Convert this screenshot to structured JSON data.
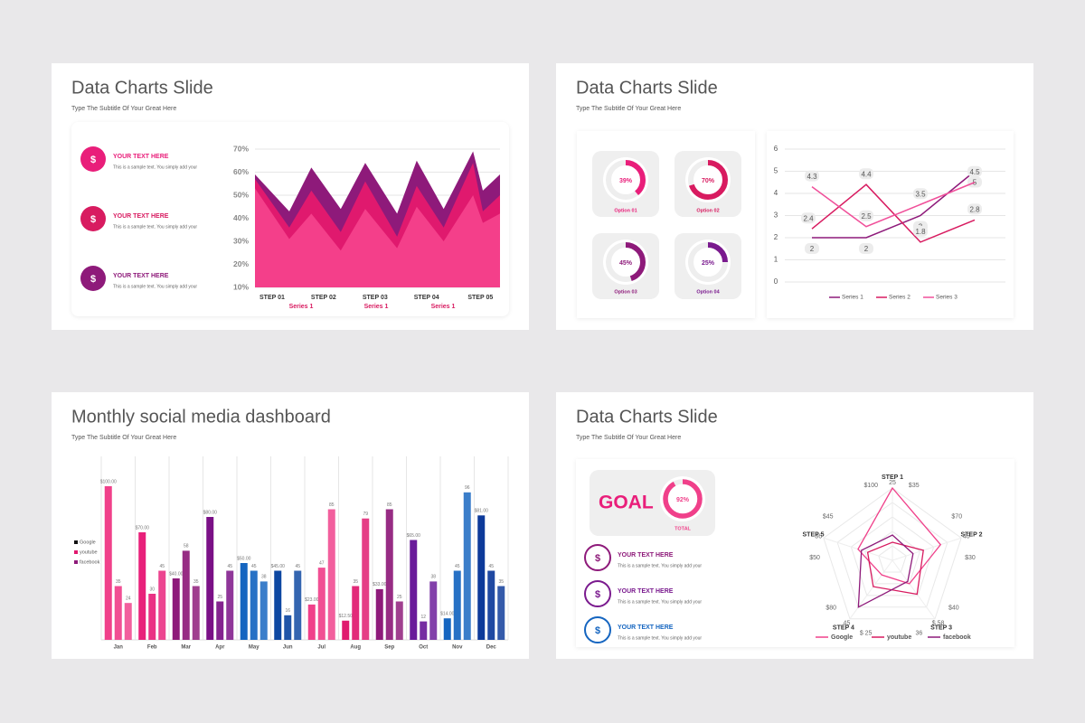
{
  "slides": [
    {
      "title": "Data Charts Slide",
      "subtitle": "Type The Subtitle Of Your Great Here",
      "items": [
        {
          "heading": "YOUR TEXT HERE",
          "text": "This is a sample text. You simply add your"
        },
        {
          "heading": "YOUR TEXT HERE",
          "text": "This is a sample text. You simply add your"
        },
        {
          "heading": "YOUR TEXT HERE",
          "text": "This is a sample text. You simply add your"
        }
      ]
    },
    {
      "title": "Data Charts Slide",
      "subtitle": "Type The Subtitle Of Your Great Here"
    },
    {
      "title": "Monthly social media dashboard",
      "subtitle": "Type The Subtitle Of Your Great Here"
    },
    {
      "title": "Data Charts Slide",
      "subtitle": "Type The Subtitle Of Your Great Here",
      "goal": "GOAL",
      "items": [
        {
          "heading": "YOUR TEXT HERE",
          "text": "This is a sample text. You simply add your"
        },
        {
          "heading": "YOUR TEXT HERE",
          "text": "This is a sample text. You simply add your"
        },
        {
          "heading": "YOUR TEXT HERE",
          "text": "This is a sample text. You simply add your"
        }
      ]
    }
  ],
  "chart_data": [
    {
      "type": "area",
      "x": [
        0,
        1.4,
        2.3,
        3.5,
        4.5,
        5.8,
        6.6,
        7.7,
        8.9,
        9.3,
        10
      ],
      "xlim": [
        0,
        10
      ],
      "xticks": [
        {
          "value": 0.7,
          "label": "STEP 01"
        },
        {
          "value": 2.8,
          "label": "STEP 02"
        },
        {
          "value": 4.9,
          "label": "STEP 03"
        },
        {
          "value": 7.0,
          "label": "STEP 04"
        },
        {
          "value": 9.2,
          "label": "STEP 05"
        }
      ],
      "series": [
        {
          "name": "Series 1",
          "color": "#8e1a7a",
          "values": [
            59,
            43,
            62,
            44,
            64,
            42,
            65,
            44,
            69,
            52,
            59
          ]
        },
        {
          "name": "Series 1",
          "color": "#e0196e",
          "values": [
            57,
            36,
            52,
            34,
            56,
            32,
            54,
            36,
            64,
            43,
            50
          ]
        },
        {
          "name": "Series 1",
          "color": "#f43f8a",
          "values": [
            53,
            31,
            42,
            26,
            44,
            27,
            45,
            30,
            50,
            38,
            42
          ]
        }
      ],
      "ylim": [
        10,
        70
      ],
      "yticks": [
        {
          "value": 10,
          "label": "10%"
        },
        {
          "value": 20,
          "label": "20%"
        },
        {
          "value": 30,
          "label": "30%"
        },
        {
          "value": 40,
          "label": "40%"
        },
        {
          "value": 50,
          "label": "50%"
        },
        {
          "value": 60,
          "label": "60%"
        },
        {
          "value": 70,
          "label": "70%"
        }
      ],
      "grid": true
    },
    {
      "type": "donut",
      "categories": [
        "Option 01",
        "Option 02",
        "Option 03",
        "Option 04"
      ],
      "values": [
        39,
        70,
        45,
        25
      ],
      "value_labels": [
        "39%",
        "70%",
        "45%",
        "25%"
      ],
      "colors": [
        "#e91e7a",
        "#d81b60",
        "#8e1a7a",
        "#7a1a8e"
      ]
    },
    {
      "type": "line",
      "categories": [
        null,
        null,
        null,
        null
      ],
      "series": [
        {
          "name": "Series 1",
          "color": "#8e1a7a",
          "values": [
            2,
            2,
            3,
            5
          ]
        },
        {
          "name": "Series 2",
          "color": "#d81b60",
          "values": [
            2.4,
            4.4,
            1.8,
            2.8
          ]
        },
        {
          "name": "Series 3",
          "color": "#f0509a",
          "values": [
            4.3,
            2.5,
            3.5,
            4.5
          ]
        }
      ],
      "ylim": [
        0,
        6
      ],
      "yticks": [
        0,
        1,
        2,
        3,
        4,
        5,
        6
      ],
      "grid": true,
      "legend": "bottom"
    },
    {
      "type": "bar",
      "categories": [
        "Jan",
        "Feb",
        "Mar",
        "Apr",
        "May",
        "Jun",
        "Jul",
        "Aug",
        "Sep",
        "Oct",
        "Nov",
        "Dec"
      ],
      "category_colors": [
        "#f0408a",
        "#e8207a",
        "#8e1a7a",
        "#7a1086",
        "#1565c0",
        "#0d47a1",
        "#f0408a",
        "#e0196e",
        "#8e1a7a",
        "#6a1b9a",
        "#1565c0",
        "#0d3a9a"
      ],
      "series": [
        {
          "name": "Google",
          "color": "#111111",
          "values": [
            100,
            70,
            40,
            80,
            50,
            45,
            23,
            12.5,
            33,
            65,
            14,
            81
          ],
          "value_labels": [
            "$100.00",
            "$70.00",
            "$40.00",
            "$80.00",
            "$50.00",
            "$45.00",
            "$23.00",
            "$12.50",
            "$33.00",
            "$65.00",
            "$14.00",
            "$81.00"
          ]
        },
        {
          "name": "youtube",
          "color": "#e0196e",
          "values": [
            35,
            30,
            58,
            25,
            45,
            16,
            47,
            35,
            85,
            12,
            45,
            45
          ]
        },
        {
          "name": "facebook",
          "color": "#8e1a7a",
          "values": [
            24,
            45,
            35,
            45,
            38,
            45,
            85,
            79,
            25,
            38,
            96,
            35
          ]
        }
      ],
      "ylim": [
        0,
        100
      ],
      "grid": true,
      "legend": "left"
    },
    {
      "type": "donut",
      "categories": [
        "TOTAL"
      ],
      "values": [
        92
      ],
      "value_labels": [
        "92%"
      ],
      "colors": [
        "#f0408a"
      ]
    },
    {
      "type": "radar",
      "categories": [
        "STEP 1",
        "STEP 2",
        "STEP 3",
        "STEP 4",
        "STEP 5"
      ],
      "series": [
        {
          "name": "Google",
          "color": "#f0408a",
          "values": [
            100,
            70,
            40,
            25,
            50
          ],
          "value_labels": [
            "$100",
            "$70",
            "$40",
            "$ 25",
            "$50"
          ]
        },
        {
          "name": "youtube",
          "color": "#d81b60",
          "values": [
            25,
            45,
            58,
            45,
            36
          ],
          "value_labels": [
            "25",
            "45",
            "$ 58",
            "45",
            "36"
          ]
        },
        {
          "name": "facebook",
          "color": "#8e1a7a",
          "values": [
            35,
            30,
            36,
            80,
            45
          ],
          "value_labels": [
            "$35",
            "$30",
            "36",
            "$80",
            "$45"
          ]
        }
      ],
      "rlim": [
        0,
        100
      ],
      "grid": true,
      "legend": "bottom"
    }
  ]
}
